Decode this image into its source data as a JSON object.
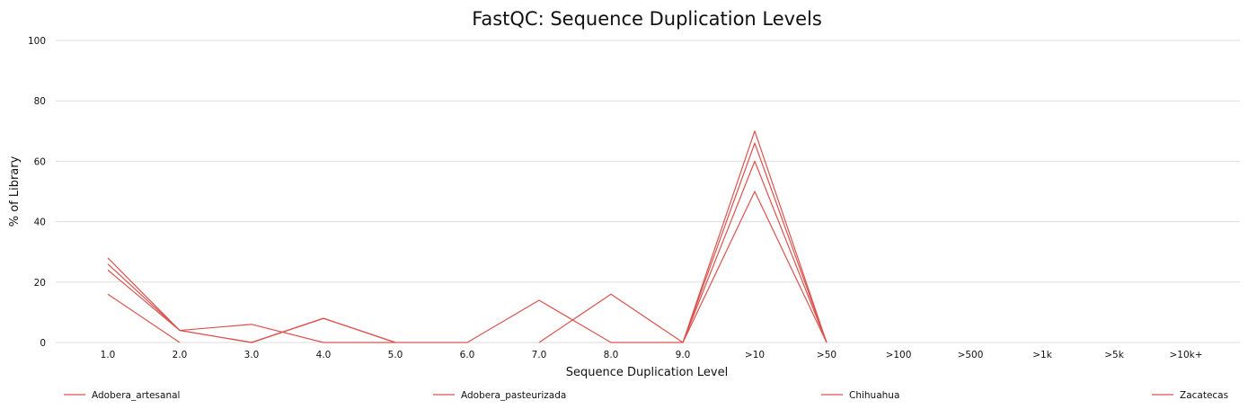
{
  "chart_data": {
    "type": "line",
    "title": "FastQC: Sequence Duplication Levels",
    "xlabel": "Sequence Duplication Level",
    "ylabel": "% of Library",
    "categories": [
      "1.0",
      "2.0",
      "3.0",
      "4.0",
      "5.0",
      "6.0",
      "7.0",
      "8.0",
      "9.0",
      ">10",
      ">50",
      ">100",
      ">500",
      ">1k",
      ">5k",
      ">10k+"
    ],
    "ylim": [
      0,
      100
    ],
    "yticks": [
      0,
      20,
      40,
      60,
      80,
      100
    ],
    "grid": true,
    "legend_position": "bottom",
    "color": "#d9534f",
    "series": [
      {
        "name": "Adobera_artesanal",
        "values": [
          28,
          4,
          6,
          0,
          0,
          null,
          0,
          16,
          0,
          70,
          0,
          null,
          null,
          null,
          null,
          null
        ]
      },
      {
        "name": "Adobera_pasteurizada",
        "values": [
          26,
          4,
          0,
          8,
          0,
          null,
          null,
          null,
          0,
          66,
          0,
          null,
          null,
          null,
          null,
          null
        ]
      },
      {
        "name": "Chihuahua",
        "values": [
          24,
          4,
          0,
          8,
          0,
          0,
          14,
          0,
          0,
          60,
          0,
          null,
          null,
          null,
          null,
          null
        ]
      },
      {
        "name": "Zacatecas",
        "values": [
          16,
          0,
          null,
          null,
          null,
          null,
          null,
          null,
          0,
          50,
          0,
          null,
          null,
          null,
          null,
          null
        ]
      }
    ]
  }
}
